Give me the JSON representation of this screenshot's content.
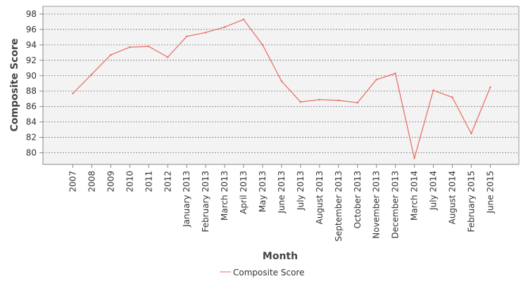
{
  "chart_data": {
    "type": "line",
    "title": "",
    "xlabel": "Month",
    "ylabel": "Composite Score",
    "categories": [
      "2007",
      "2008",
      "2009",
      "2010",
      "2011",
      "2012",
      "January 2013",
      "February 2013",
      "March 2013",
      "April 2013",
      "May 2013",
      "June 2013",
      "July 2013",
      "August 2013",
      "September 2013",
      "October 2013",
      "November 2013",
      "December 2013",
      "March 2014",
      "July 2014",
      "August 2014",
      "February 2015",
      "June 2015"
    ],
    "series": [
      {
        "name": "Composite Score",
        "color": "#e8685f",
        "values": [
          87.7,
          90.2,
          92.7,
          93.7,
          93.8,
          92.4,
          95.1,
          95.6,
          96.3,
          97.3,
          94.0,
          89.3,
          86.6,
          86.9,
          86.8,
          86.5,
          89.5,
          90.3,
          79.3,
          88.1,
          87.2,
          82.5,
          88.5
        ]
      }
    ],
    "yticks": [
      80,
      82,
      84,
      86,
      88,
      90,
      92,
      94,
      96,
      98
    ],
    "ylim": [
      78.5,
      99
    ],
    "grid": true,
    "legend_position": "bottom"
  }
}
